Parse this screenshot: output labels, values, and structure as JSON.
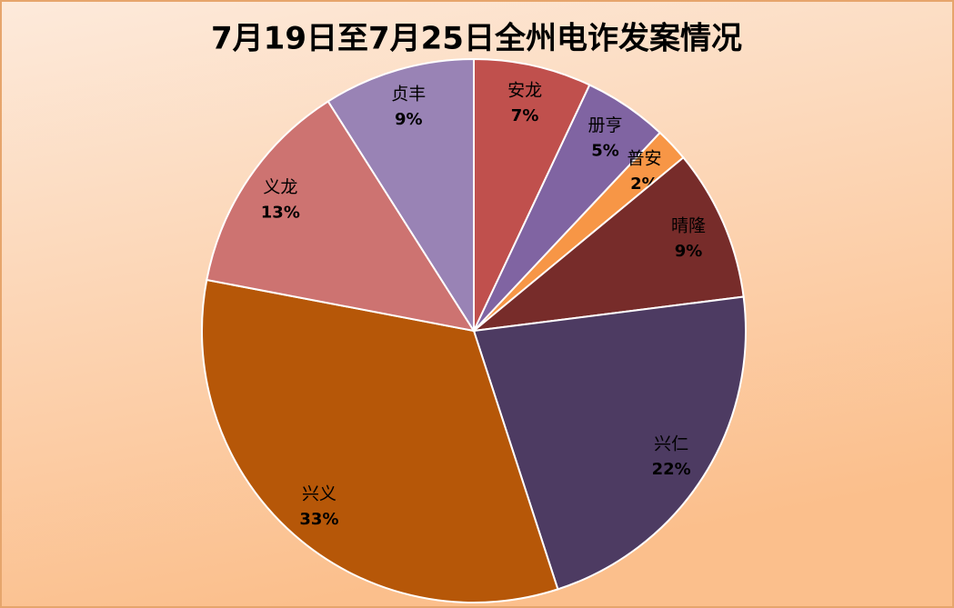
{
  "chart_data": {
    "type": "pie",
    "title": "7月19日至7月25日全州电诈发案情况",
    "categories": [
      "安龙",
      "册亨",
      "普安",
      "晴隆",
      "兴仁",
      "兴义",
      "义龙",
      "贞丰"
    ],
    "values": [
      7,
      5,
      2,
      9,
      22,
      33,
      13,
      9
    ],
    "value_labels": [
      "7%",
      "5%",
      "2%",
      "9%",
      "22%",
      "33%",
      "13%",
      "9%"
    ],
    "colors": [
      "#c0504d",
      "#8064a2",
      "#f79646",
      "#772c2a",
      "#4d3b62",
      "#b65708",
      "#cd7371",
      "#9983b5"
    ]
  }
}
